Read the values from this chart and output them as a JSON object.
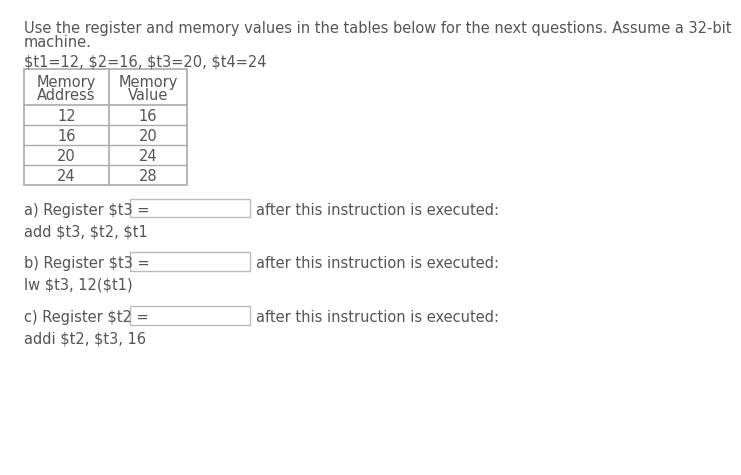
{
  "intro_line1": "Use the register and memory values in the tables below for the next questions. Assume a 32-bit",
  "intro_line2": "machine.",
  "registers_text": "\\$t1=12, \\$2=16, \\$t3=20, \\$t4=24",
  "table_headers_col1": [
    "Memory",
    "Address"
  ],
  "table_headers_col2": [
    "Memory",
    "Value"
  ],
  "table_data": [
    [
      12,
      16
    ],
    [
      16,
      20
    ],
    [
      20,
      24
    ],
    [
      24,
      28
    ]
  ],
  "qa_label": "a) Register \\$t3 =",
  "qa_suffix": "after this instruction is executed:",
  "qa_instr": "add \\$t3, \\$t2, \\$t1",
  "qb_label": "b) Register \\$t3 =",
  "qb_suffix": "after this instruction is executed:",
  "qb_instr": "lw \\$t3, 12(\\$t1)",
  "qc_label": "c) Register \\$t2 =",
  "qc_suffix": "after this instruction is executed:",
  "qc_instr": "addi \\$t2, \\$t3, 16",
  "text_color": "#555555",
  "bg_color": "#ffffff",
  "table_line_color": "#aaaaaa",
  "box_border_color": "#bbbbbb",
  "font_size": 10.5,
  "table_font_size": 10.5
}
